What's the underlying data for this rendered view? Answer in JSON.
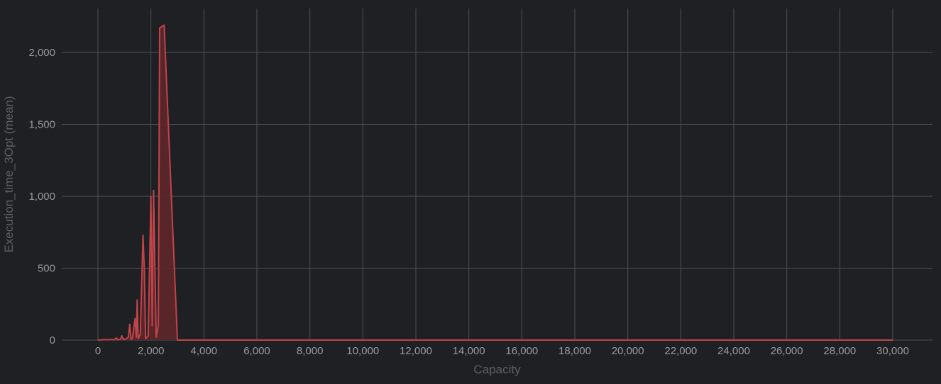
{
  "chart_data": {
    "type": "area",
    "title": "",
    "xlabel": "Capacity",
    "ylabel": "Execution_time_3Opt (mean)",
    "xlim": [
      -1400,
      31500
    ],
    "ylim": [
      0,
      2300
    ],
    "x_ticks": [
      0,
      2000,
      4000,
      6000,
      8000,
      10000,
      12000,
      14000,
      16000,
      18000,
      20000,
      22000,
      24000,
      26000,
      28000,
      30000
    ],
    "x_tick_labels": [
      "0",
      "2,000",
      "4,000",
      "6,000",
      "8,000",
      "10,000",
      "12,000",
      "14,000",
      "16,000",
      "18,000",
      "20,000",
      "22,000",
      "24,000",
      "26,000",
      "28,000",
      "30,000"
    ],
    "y_ticks": [
      0,
      500,
      1000,
      1500,
      2000
    ],
    "y_tick_labels": [
      "0",
      "500",
      "1,000",
      "1,500",
      "2,000"
    ],
    "grid": true,
    "legend": "none",
    "colors": {
      "background": "#1f2023",
      "grid": "#4e4f53",
      "line": "#c0444a",
      "fill": "#5e262a"
    },
    "series": [
      {
        "values": [
          [
            0,
            0
          ],
          [
            150,
            2
          ],
          [
            250,
            3
          ],
          [
            350,
            2
          ],
          [
            500,
            4
          ],
          [
            600,
            2
          ],
          [
            700,
            15
          ],
          [
            750,
            2
          ],
          [
            850,
            6
          ],
          [
            900,
            30
          ],
          [
            950,
            5
          ],
          [
            1050,
            8
          ],
          [
            1150,
            20
          ],
          [
            1200,
            110
          ],
          [
            1250,
            5
          ],
          [
            1300,
            10
          ],
          [
            1400,
            150
          ],
          [
            1450,
            20
          ],
          [
            1480,
            280
          ],
          [
            1520,
            10
          ],
          [
            1600,
            40
          ],
          [
            1700,
            730
          ],
          [
            1750,
            500
          ],
          [
            1800,
            10
          ],
          [
            1900,
            30
          ],
          [
            2000,
            1000
          ],
          [
            2050,
            100
          ],
          [
            2100,
            1040
          ],
          [
            2200,
            20
          ],
          [
            2280,
            100
          ],
          [
            2330,
            2170
          ],
          [
            2500,
            2190
          ],
          [
            3000,
            0
          ],
          [
            3500,
            0
          ],
          [
            30000,
            0
          ]
        ]
      }
    ]
  }
}
